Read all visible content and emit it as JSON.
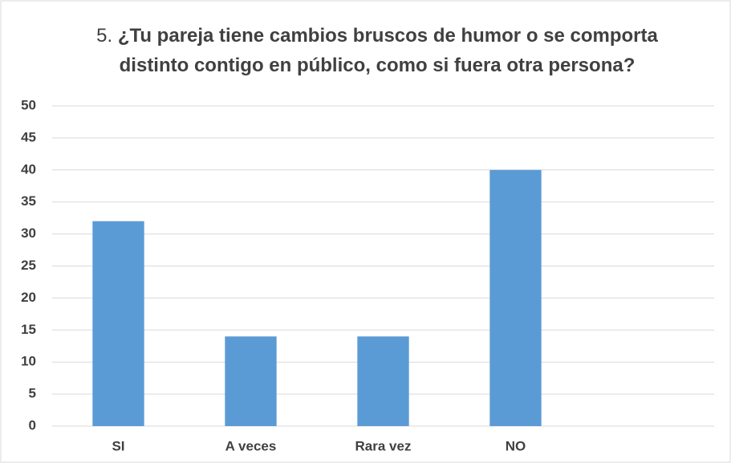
{
  "chart_data": {
    "type": "bar",
    "title_prefix": "5.",
    "title": "¿Tu pareja tiene cambios bruscos de humor o se comporta distinto contigo en público, como si fuera otra persona?",
    "categories": [
      "SI",
      "A veces",
      "Rara vez",
      "NO",
      null
    ],
    "values": [
      32,
      14,
      14,
      40,
      null
    ],
    "color": "#5b9bd5",
    "ylim": [
      0,
      50
    ],
    "yticks": [
      0,
      5,
      10,
      15,
      20,
      25,
      30,
      35,
      40,
      45,
      50
    ],
    "grid": true
  }
}
